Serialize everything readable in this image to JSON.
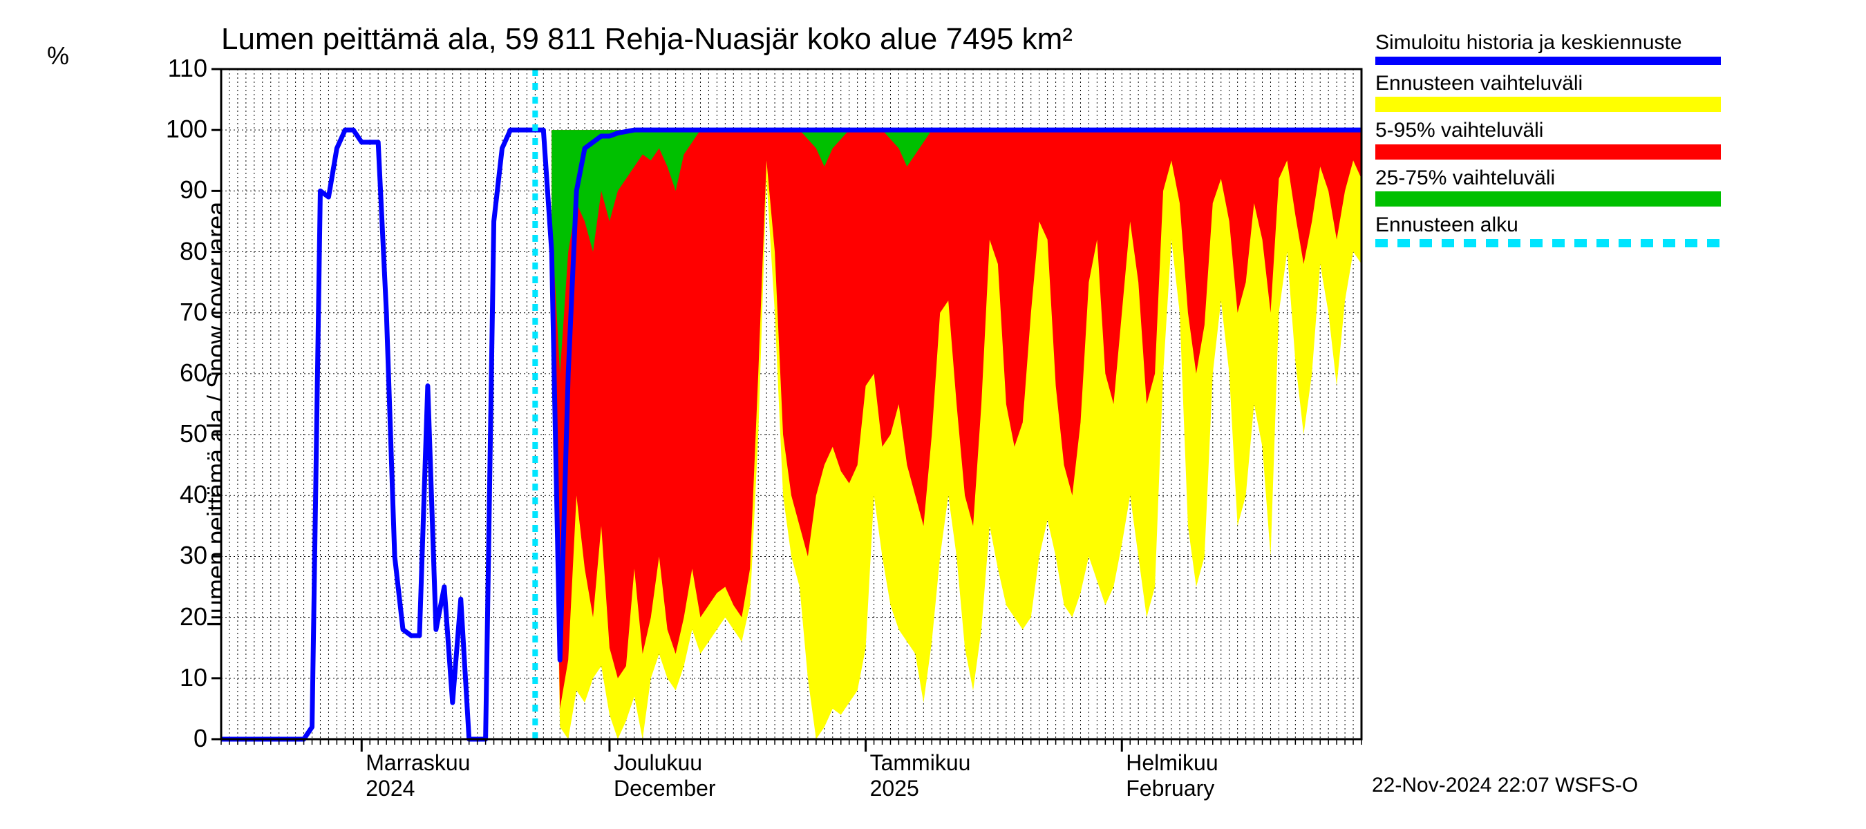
{
  "title": "Lumen peittämä ala, 59 811 Rehja-Nuasjär koko alue 7495 km²",
  "ylabel": "Lumen peittämä ala / Snow cover area",
  "ylabel_unit": "%",
  "footer": "22-Nov-2024 22:07 WSFS-O",
  "chart": {
    "type": "area+line",
    "background_color": "#ffffff",
    "grid_color": "#000000",
    "grid_dash": "2,4",
    "axis_color": "#000000",
    "ylim": [
      0,
      110
    ],
    "yticks": [
      0,
      10,
      20,
      30,
      40,
      50,
      60,
      70,
      80,
      90,
      100,
      110
    ],
    "x_days_span": 138,
    "x_day_minor_step": 1,
    "x_monthstart_days": [
      17,
      47,
      78,
      109
    ],
    "x_month_labels": [
      {
        "day": 17,
        "line1": "Marraskuu",
        "line2": "2024"
      },
      {
        "day": 47,
        "line1": "Joulukuu",
        "line2": "December"
      },
      {
        "day": 78,
        "line1": "Tammikuu",
        "line2": "2025"
      },
      {
        "day": 109,
        "line1": "Helmikuu",
        "line2": "February"
      }
    ],
    "forecast_start_day": 38,
    "colors": {
      "history_line": "#0000ff",
      "full_range": "#ffff00",
      "p5_95": "#ff0000",
      "p25_75": "#00c000",
      "forecast_marker": "#00e5ff"
    },
    "line_width_history": 7,
    "line_width_forecast_marker": 8,
    "forecast_marker_dash": "10,10",
    "history": [
      {
        "d": 0,
        "v": 0
      },
      {
        "d": 2,
        "v": 0
      },
      {
        "d": 4,
        "v": 0
      },
      {
        "d": 6,
        "v": 0
      },
      {
        "d": 8,
        "v": 0
      },
      {
        "d": 10,
        "v": 0
      },
      {
        "d": 11,
        "v": 2
      },
      {
        "d": 12,
        "v": 90
      },
      {
        "d": 13,
        "v": 89
      },
      {
        "d": 14,
        "v": 97
      },
      {
        "d": 15,
        "v": 100
      },
      {
        "d": 16,
        "v": 100
      },
      {
        "d": 17,
        "v": 98
      },
      {
        "d": 18,
        "v": 98
      },
      {
        "d": 19,
        "v": 98
      },
      {
        "d": 20,
        "v": 70
      },
      {
        "d": 21,
        "v": 30
      },
      {
        "d": 22,
        "v": 18
      },
      {
        "d": 23,
        "v": 17
      },
      {
        "d": 24,
        "v": 17
      },
      {
        "d": 25,
        "v": 58
      },
      {
        "d": 26,
        "v": 18
      },
      {
        "d": 27,
        "v": 25
      },
      {
        "d": 28,
        "v": 6
      },
      {
        "d": 29,
        "v": 23
      },
      {
        "d": 30,
        "v": 0
      },
      {
        "d": 31,
        "v": 0
      },
      {
        "d": 32,
        "v": 0
      },
      {
        "d": 33,
        "v": 85
      },
      {
        "d": 34,
        "v": 97
      },
      {
        "d": 35,
        "v": 100
      },
      {
        "d": 36,
        "v": 100
      },
      {
        "d": 37,
        "v": 100
      },
      {
        "d": 38,
        "v": 100
      },
      {
        "d": 39,
        "v": 100
      },
      {
        "d": 40,
        "v": 80
      },
      {
        "d": 41,
        "v": 13
      },
      {
        "d": 42,
        "v": 60
      },
      {
        "d": 43,
        "v": 90
      },
      {
        "d": 44,
        "v": 97
      },
      {
        "d": 45,
        "v": 98
      },
      {
        "d": 46,
        "v": 99
      },
      {
        "d": 47,
        "v": 99
      },
      {
        "d": 48,
        "v": 99.5
      },
      {
        "d": 50,
        "v": 100
      },
      {
        "d": 55,
        "v": 100
      },
      {
        "d": 60,
        "v": 100
      },
      {
        "d": 70,
        "v": 100
      },
      {
        "d": 80,
        "v": 100
      },
      {
        "d": 90,
        "v": 100
      },
      {
        "d": 100,
        "v": 100
      },
      {
        "d": 110,
        "v": 100
      },
      {
        "d": 120,
        "v": 100
      },
      {
        "d": 130,
        "v": 100
      },
      {
        "d": 138,
        "v": 100
      }
    ],
    "band_full_lo": [
      {
        "d": 40,
        "v": 80
      },
      {
        "d": 41,
        "v": 2
      },
      {
        "d": 42,
        "v": 0
      },
      {
        "d": 43,
        "v": 8
      },
      {
        "d": 44,
        "v": 6
      },
      {
        "d": 45,
        "v": 10
      },
      {
        "d": 46,
        "v": 12
      },
      {
        "d": 47,
        "v": 4
      },
      {
        "d": 48,
        "v": 0
      },
      {
        "d": 49,
        "v": 3
      },
      {
        "d": 50,
        "v": 7
      },
      {
        "d": 51,
        "v": 0
      },
      {
        "d": 52,
        "v": 10
      },
      {
        "d": 53,
        "v": 14
      },
      {
        "d": 54,
        "v": 10
      },
      {
        "d": 55,
        "v": 8
      },
      {
        "d": 56,
        "v": 12
      },
      {
        "d": 57,
        "v": 18
      },
      {
        "d": 58,
        "v": 14
      },
      {
        "d": 59,
        "v": 16
      },
      {
        "d": 60,
        "v": 18
      },
      {
        "d": 61,
        "v": 20
      },
      {
        "d": 62,
        "v": 18
      },
      {
        "d": 63,
        "v": 16
      },
      {
        "d": 64,
        "v": 22
      },
      {
        "d": 65,
        "v": 50
      },
      {
        "d": 66,
        "v": 92
      },
      {
        "d": 67,
        "v": 70
      },
      {
        "d": 68,
        "v": 40
      },
      {
        "d": 69,
        "v": 30
      },
      {
        "d": 70,
        "v": 25
      },
      {
        "d": 71,
        "v": 10
      },
      {
        "d": 72,
        "v": 0
      },
      {
        "d": 73,
        "v": 2
      },
      {
        "d": 74,
        "v": 5
      },
      {
        "d": 75,
        "v": 4
      },
      {
        "d": 76,
        "v": 6
      },
      {
        "d": 77,
        "v": 8
      },
      {
        "d": 78,
        "v": 15
      },
      {
        "d": 79,
        "v": 40
      },
      {
        "d": 80,
        "v": 30
      },
      {
        "d": 81,
        "v": 22
      },
      {
        "d": 82,
        "v": 18
      },
      {
        "d": 83,
        "v": 16
      },
      {
        "d": 84,
        "v": 14
      },
      {
        "d": 85,
        "v": 6
      },
      {
        "d": 86,
        "v": 16
      },
      {
        "d": 87,
        "v": 30
      },
      {
        "d": 88,
        "v": 40
      },
      {
        "d": 89,
        "v": 30
      },
      {
        "d": 90,
        "v": 15
      },
      {
        "d": 91,
        "v": 8
      },
      {
        "d": 92,
        "v": 18
      },
      {
        "d": 93,
        "v": 35
      },
      {
        "d": 94,
        "v": 28
      },
      {
        "d": 95,
        "v": 22
      },
      {
        "d": 96,
        "v": 20
      },
      {
        "d": 97,
        "v": 18
      },
      {
        "d": 98,
        "v": 20
      },
      {
        "d": 99,
        "v": 30
      },
      {
        "d": 100,
        "v": 36
      },
      {
        "d": 101,
        "v": 30
      },
      {
        "d": 102,
        "v": 22
      },
      {
        "d": 103,
        "v": 20
      },
      {
        "d": 104,
        "v": 24
      },
      {
        "d": 105,
        "v": 30
      },
      {
        "d": 106,
        "v": 26
      },
      {
        "d": 107,
        "v": 22
      },
      {
        "d": 108,
        "v": 25
      },
      {
        "d": 109,
        "v": 32
      },
      {
        "d": 110,
        "v": 40
      },
      {
        "d": 111,
        "v": 30
      },
      {
        "d": 112,
        "v": 20
      },
      {
        "d": 113,
        "v": 25
      },
      {
        "d": 114,
        "v": 60
      },
      {
        "d": 115,
        "v": 82
      },
      {
        "d": 116,
        "v": 70
      },
      {
        "d": 117,
        "v": 35
      },
      {
        "d": 118,
        "v": 25
      },
      {
        "d": 119,
        "v": 30
      },
      {
        "d": 120,
        "v": 60
      },
      {
        "d": 121,
        "v": 72
      },
      {
        "d": 122,
        "v": 60
      },
      {
        "d": 123,
        "v": 35
      },
      {
        "d": 124,
        "v": 40
      },
      {
        "d": 125,
        "v": 55
      },
      {
        "d": 126,
        "v": 48
      },
      {
        "d": 127,
        "v": 30
      },
      {
        "d": 128,
        "v": 70
      },
      {
        "d": 129,
        "v": 80
      },
      {
        "d": 130,
        "v": 62
      },
      {
        "d": 131,
        "v": 50
      },
      {
        "d": 132,
        "v": 60
      },
      {
        "d": 133,
        "v": 78
      },
      {
        "d": 134,
        "v": 70
      },
      {
        "d": 135,
        "v": 58
      },
      {
        "d": 136,
        "v": 72
      },
      {
        "d": 137,
        "v": 80
      },
      {
        "d": 138,
        "v": 78
      }
    ],
    "band_full_hi": [
      {
        "d": 40,
        "v": 100
      },
      {
        "d": 50,
        "v": 100
      },
      {
        "d": 60,
        "v": 100
      },
      {
        "d": 70,
        "v": 100
      },
      {
        "d": 80,
        "v": 100
      },
      {
        "d": 90,
        "v": 100
      },
      {
        "d": 100,
        "v": 100
      },
      {
        "d": 110,
        "v": 100
      },
      {
        "d": 120,
        "v": 100
      },
      {
        "d": 130,
        "v": 100
      },
      {
        "d": 138,
        "v": 100
      }
    ],
    "band_595_lo": [
      {
        "d": 40,
        "v": 82
      },
      {
        "d": 41,
        "v": 5
      },
      {
        "d": 42,
        "v": 13
      },
      {
        "d": 43,
        "v": 40
      },
      {
        "d": 44,
        "v": 28
      },
      {
        "d": 45,
        "v": 20
      },
      {
        "d": 46,
        "v": 35
      },
      {
        "d": 47,
        "v": 15
      },
      {
        "d": 48,
        "v": 10
      },
      {
        "d": 49,
        "v": 12
      },
      {
        "d": 50,
        "v": 28
      },
      {
        "d": 51,
        "v": 14
      },
      {
        "d": 52,
        "v": 20
      },
      {
        "d": 53,
        "v": 30
      },
      {
        "d": 54,
        "v": 18
      },
      {
        "d": 55,
        "v": 14
      },
      {
        "d": 56,
        "v": 20
      },
      {
        "d": 57,
        "v": 28
      },
      {
        "d": 58,
        "v": 20
      },
      {
        "d": 59,
        "v": 22
      },
      {
        "d": 60,
        "v": 24
      },
      {
        "d": 61,
        "v": 25
      },
      {
        "d": 62,
        "v": 22
      },
      {
        "d": 63,
        "v": 20
      },
      {
        "d": 64,
        "v": 28
      },
      {
        "d": 65,
        "v": 60
      },
      {
        "d": 66,
        "v": 95
      },
      {
        "d": 67,
        "v": 80
      },
      {
        "d": 68,
        "v": 50
      },
      {
        "d": 69,
        "v": 40
      },
      {
        "d": 70,
        "v": 35
      },
      {
        "d": 71,
        "v": 30
      },
      {
        "d": 72,
        "v": 40
      },
      {
        "d": 73,
        "v": 45
      },
      {
        "d": 74,
        "v": 48
      },
      {
        "d": 75,
        "v": 44
      },
      {
        "d": 76,
        "v": 42
      },
      {
        "d": 77,
        "v": 45
      },
      {
        "d": 78,
        "v": 58
      },
      {
        "d": 79,
        "v": 60
      },
      {
        "d": 80,
        "v": 48
      },
      {
        "d": 81,
        "v": 50
      },
      {
        "d": 82,
        "v": 55
      },
      {
        "d": 83,
        "v": 45
      },
      {
        "d": 84,
        "v": 40
      },
      {
        "d": 85,
        "v": 35
      },
      {
        "d": 86,
        "v": 50
      },
      {
        "d": 87,
        "v": 70
      },
      {
        "d": 88,
        "v": 72
      },
      {
        "d": 89,
        "v": 55
      },
      {
        "d": 90,
        "v": 40
      },
      {
        "d": 91,
        "v": 35
      },
      {
        "d": 92,
        "v": 55
      },
      {
        "d": 93,
        "v": 82
      },
      {
        "d": 94,
        "v": 78
      },
      {
        "d": 95,
        "v": 55
      },
      {
        "d": 96,
        "v": 48
      },
      {
        "d": 97,
        "v": 52
      },
      {
        "d": 98,
        "v": 70
      },
      {
        "d": 99,
        "v": 85
      },
      {
        "d": 100,
        "v": 82
      },
      {
        "d": 101,
        "v": 58
      },
      {
        "d": 102,
        "v": 45
      },
      {
        "d": 103,
        "v": 40
      },
      {
        "d": 104,
        "v": 52
      },
      {
        "d": 105,
        "v": 75
      },
      {
        "d": 106,
        "v": 82
      },
      {
        "d": 107,
        "v": 60
      },
      {
        "d": 108,
        "v": 55
      },
      {
        "d": 109,
        "v": 70
      },
      {
        "d": 110,
        "v": 85
      },
      {
        "d": 111,
        "v": 75
      },
      {
        "d": 112,
        "v": 55
      },
      {
        "d": 113,
        "v": 60
      },
      {
        "d": 114,
        "v": 90
      },
      {
        "d": 115,
        "v": 95
      },
      {
        "d": 116,
        "v": 88
      },
      {
        "d": 117,
        "v": 70
      },
      {
        "d": 118,
        "v": 60
      },
      {
        "d": 119,
        "v": 68
      },
      {
        "d": 120,
        "v": 88
      },
      {
        "d": 121,
        "v": 92
      },
      {
        "d": 122,
        "v": 85
      },
      {
        "d": 123,
        "v": 70
      },
      {
        "d": 124,
        "v": 75
      },
      {
        "d": 125,
        "v": 88
      },
      {
        "d": 126,
        "v": 82
      },
      {
        "d": 127,
        "v": 70
      },
      {
        "d": 128,
        "v": 92
      },
      {
        "d": 129,
        "v": 95
      },
      {
        "d": 130,
        "v": 86
      },
      {
        "d": 131,
        "v": 78
      },
      {
        "d": 132,
        "v": 85
      },
      {
        "d": 133,
        "v": 94
      },
      {
        "d": 134,
        "v": 90
      },
      {
        "d": 135,
        "v": 82
      },
      {
        "d": 136,
        "v": 90
      },
      {
        "d": 137,
        "v": 95
      },
      {
        "d": 138,
        "v": 92
      }
    ],
    "band_595_hi": [
      {
        "d": 40,
        "v": 100
      },
      {
        "d": 50,
        "v": 100
      },
      {
        "d": 60,
        "v": 100
      },
      {
        "d": 70,
        "v": 100
      },
      {
        "d": 80,
        "v": 100
      },
      {
        "d": 90,
        "v": 100
      },
      {
        "d": 100,
        "v": 100
      },
      {
        "d": 110,
        "v": 100
      },
      {
        "d": 120,
        "v": 100
      },
      {
        "d": 130,
        "v": 100
      },
      {
        "d": 138,
        "v": 100
      }
    ],
    "band_2575_lo": [
      {
        "d": 40,
        "v": 85
      },
      {
        "d": 41,
        "v": 60
      },
      {
        "d": 42,
        "v": 80
      },
      {
        "d": 43,
        "v": 88
      },
      {
        "d": 44,
        "v": 85
      },
      {
        "d": 45,
        "v": 80
      },
      {
        "d": 46,
        "v": 90
      },
      {
        "d": 47,
        "v": 85
      },
      {
        "d": 48,
        "v": 90
      },
      {
        "d": 49,
        "v": 92
      },
      {
        "d": 50,
        "v": 94
      },
      {
        "d": 51,
        "v": 96
      },
      {
        "d": 52,
        "v": 95
      },
      {
        "d": 53,
        "v": 97
      },
      {
        "d": 54,
        "v": 94
      },
      {
        "d": 55,
        "v": 90
      },
      {
        "d": 56,
        "v": 96
      },
      {
        "d": 57,
        "v": 98
      },
      {
        "d": 58,
        "v": 100
      },
      {
        "d": 60,
        "v": 100
      },
      {
        "d": 62,
        "v": 100
      },
      {
        "d": 64,
        "v": 100
      },
      {
        "d": 66,
        "v": 100
      },
      {
        "d": 68,
        "v": 100
      },
      {
        "d": 70,
        "v": 100
      },
      {
        "d": 72,
        "v": 97
      },
      {
        "d": 73,
        "v": 94
      },
      {
        "d": 74,
        "v": 97
      },
      {
        "d": 76,
        "v": 100
      },
      {
        "d": 78,
        "v": 100
      },
      {
        "d": 80,
        "v": 100
      },
      {
        "d": 82,
        "v": 97
      },
      {
        "d": 83,
        "v": 94
      },
      {
        "d": 84,
        "v": 96
      },
      {
        "d": 86,
        "v": 100
      },
      {
        "d": 88,
        "v": 100
      },
      {
        "d": 90,
        "v": 100
      },
      {
        "d": 92,
        "v": 100
      },
      {
        "d": 94,
        "v": 100
      },
      {
        "d": 96,
        "v": 100
      },
      {
        "d": 98,
        "v": 100
      },
      {
        "d": 100,
        "v": 100
      },
      {
        "d": 110,
        "v": 100
      },
      {
        "d": 120,
        "v": 100
      },
      {
        "d": 130,
        "v": 100
      },
      {
        "d": 138,
        "v": 100
      }
    ],
    "band_2575_hi": [
      {
        "d": 40,
        "v": 100
      },
      {
        "d": 50,
        "v": 100
      },
      {
        "d": 60,
        "v": 100
      },
      {
        "d": 70,
        "v": 100
      },
      {
        "d": 80,
        "v": 100
      },
      {
        "d": 90,
        "v": 100
      },
      {
        "d": 100,
        "v": 100
      },
      {
        "d": 110,
        "v": 100
      },
      {
        "d": 120,
        "v": 100
      },
      {
        "d": 130,
        "v": 100
      },
      {
        "d": 138,
        "v": 100
      }
    ]
  },
  "legend": {
    "items": [
      {
        "label": "Simuloitu historia ja keskiennuste",
        "type": "line",
        "color": "#0000ff",
        "width": 12
      },
      {
        "label": "Ennusteen vaihteluväli",
        "type": "swatch",
        "color": "#ffff00"
      },
      {
        "label": "5-95% vaihteluväli",
        "type": "swatch",
        "color": "#ff0000"
      },
      {
        "label": "25-75% vaihteluväli",
        "type": "swatch",
        "color": "#00c000"
      },
      {
        "label": "Ennusteen alku",
        "type": "dashline",
        "color": "#00e5ff",
        "width": 12
      }
    ]
  }
}
